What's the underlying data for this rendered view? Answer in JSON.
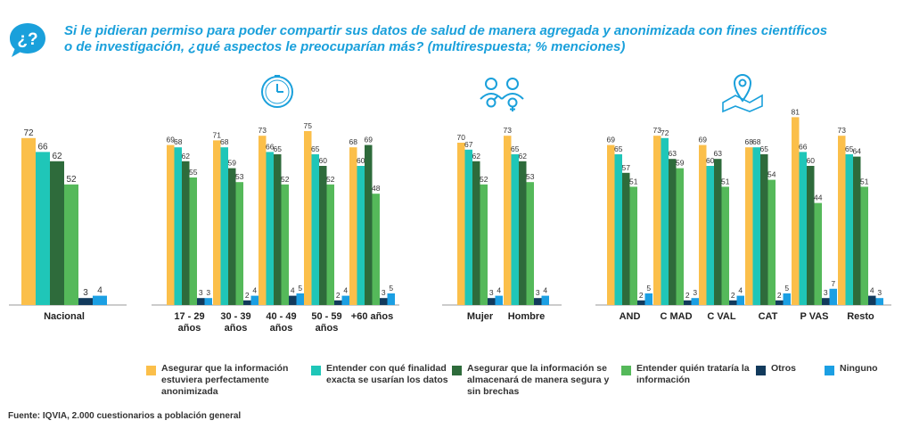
{
  "title": {
    "line1": "Si le pidieran permiso para poder compartir sus datos de salud de manera agregada y anonimizada con fines científicos",
    "line2": "o de investigación, ¿qué aspectos le preocuparían más? (multirespuesta; % menciones)"
  },
  "badge_text": "¿?",
  "source": "Fuente: IQVIA, 2.000 cuestionarios a población general",
  "colors": {
    "accent": "#1aa0db",
    "series": [
      "#fbbf4a",
      "#1fc6b8",
      "#2e6b3b",
      "#55b95a",
      "#123a5c",
      "#1b9fe3"
    ]
  },
  "chart_data": {
    "type": "bar",
    "ylim": [
      0,
      90
    ],
    "series_names": [
      "Asegurar que la información estuviera perfectamente anonimizada",
      "Entender con qué finalidad exacta se usarían los datos",
      "Asegurar que la información se almacenará de manera segura y sin brechas",
      "Entender quién trataría la información",
      "Otros",
      "Ninguno"
    ],
    "groups": [
      {
        "name": "nacional",
        "icon": "",
        "categories": [
          {
            "label": [
              "Nacional"
            ],
            "values": [
              72,
              66,
              62,
              52,
              3,
              4
            ]
          }
        ]
      },
      {
        "name": "edad",
        "icon": "clock-icon",
        "categories": [
          {
            "label": [
              "17 - 29",
              "años"
            ],
            "values": [
              69,
              68,
              62,
              55,
              3,
              3
            ]
          },
          {
            "label": [
              "30 - 39",
              "años"
            ],
            "values": [
              71,
              68,
              59,
              53,
              2,
              4
            ]
          },
          {
            "label": [
              "40 - 49",
              "años"
            ],
            "values": [
              73,
              66,
              65,
              52,
              4,
              5
            ]
          },
          {
            "label": [
              "50 - 59",
              "años"
            ],
            "values": [
              75,
              65,
              60,
              52,
              2,
              4
            ]
          },
          {
            "label": [
              "+60 años"
            ],
            "values": [
              68,
              60,
              69,
              48,
              3,
              5
            ]
          }
        ]
      },
      {
        "name": "sexo",
        "icon": "gender-icon",
        "categories": [
          {
            "label": [
              "Mujer"
            ],
            "values": [
              70,
              67,
              62,
              52,
              3,
              4
            ]
          },
          {
            "label": [
              "Hombre"
            ],
            "values": [
              73,
              65,
              62,
              53,
              3,
              4
            ]
          }
        ]
      },
      {
        "name": "region",
        "icon": "map-pin-icon",
        "categories": [
          {
            "label": [
              "AND"
            ],
            "values": [
              69,
              65,
              57,
              51,
              2,
              5
            ]
          },
          {
            "label": [
              "C MAD"
            ],
            "values": [
              73,
              72,
              63,
              59,
              2,
              3
            ]
          },
          {
            "label": [
              "C VAL"
            ],
            "values": [
              69,
              60,
              63,
              51,
              2,
              4
            ]
          },
          {
            "label": [
              "CAT"
            ],
            "values": [
              68,
              68,
              65,
              54,
              2,
              5
            ]
          },
          {
            "label": [
              "P VAS"
            ],
            "values": [
              81,
              66,
              60,
              44,
              3,
              7
            ]
          },
          {
            "label": [
              "Resto"
            ],
            "values": [
              73,
              65,
              64,
              51,
              4,
              3
            ]
          }
        ]
      }
    ]
  }
}
